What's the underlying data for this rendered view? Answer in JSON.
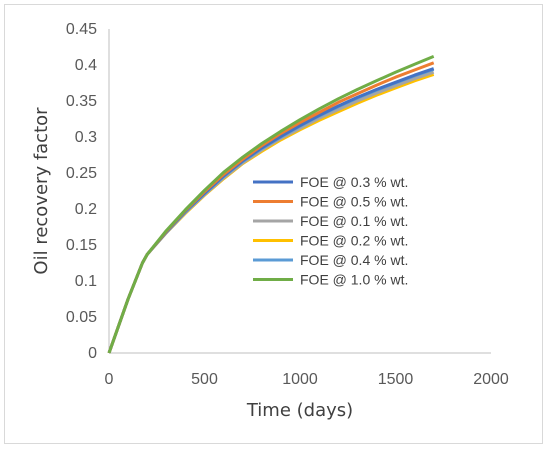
{
  "chart_data": {
    "type": "line",
    "title": "",
    "xlabel": "Time (days)",
    "ylabel": "Oil recovery factor",
    "xlim": [
      0,
      2000
    ],
    "ylim": [
      0,
      0.45
    ],
    "x_ticks": [
      "0",
      "500",
      "1000",
      "1500",
      "2000"
    ],
    "y_ticks": [
      "0",
      "0.05",
      "0.1",
      "0.15",
      "0.2",
      "0.25",
      "0.3",
      "0.35",
      "0.4",
      "0.45"
    ],
    "grid": false,
    "legend_position": "center-right",
    "x": [
      0,
      100,
      175,
      200,
      300,
      400,
      500,
      600,
      700,
      800,
      900,
      1000,
      1100,
      1200,
      1300,
      1400,
      1500,
      1600,
      1700
    ],
    "series": [
      {
        "name": "FOE @ 0.3 % wt.",
        "color": "#4472C4",
        "values": [
          0,
          0.075,
          0.125,
          0.137,
          0.168,
          0.197,
          0.222,
          0.246,
          0.267,
          0.285,
          0.301,
          0.316,
          0.33,
          0.343,
          0.355,
          0.366,
          0.376,
          0.386,
          0.395
        ]
      },
      {
        "name": "FOE @ 0.5 % wt.",
        "color": "#ED7D31",
        "values": [
          0,
          0.075,
          0.125,
          0.137,
          0.169,
          0.198,
          0.224,
          0.248,
          0.269,
          0.288,
          0.305,
          0.32,
          0.334,
          0.348,
          0.36,
          0.372,
          0.383,
          0.393,
          0.403
        ]
      },
      {
        "name": "FOE @ 0.1 % wt.",
        "color": "#A5A5A5",
        "values": [
          0,
          0.075,
          0.125,
          0.137,
          0.167,
          0.195,
          0.22,
          0.243,
          0.264,
          0.282,
          0.298,
          0.312,
          0.326,
          0.338,
          0.35,
          0.361,
          0.371,
          0.381,
          0.39
        ]
      },
      {
        "name": "FOE @ 0.2 % wt.",
        "color": "#FFC000",
        "values": [
          0,
          0.075,
          0.125,
          0.137,
          0.167,
          0.194,
          0.219,
          0.242,
          0.263,
          0.28,
          0.296,
          0.31,
          0.323,
          0.335,
          0.347,
          0.358,
          0.368,
          0.378,
          0.387
        ]
      },
      {
        "name": "FOE @ 0.4 % wt.",
        "color": "#5B9BD5",
        "values": [
          0,
          0.075,
          0.125,
          0.137,
          0.168,
          0.196,
          0.221,
          0.245,
          0.266,
          0.284,
          0.3,
          0.315,
          0.329,
          0.342,
          0.354,
          0.365,
          0.375,
          0.385,
          0.394
        ]
      },
      {
        "name": "FOE @ 1.0 % wt.",
        "color": "#70AD47",
        "values": [
          0,
          0.075,
          0.125,
          0.137,
          0.17,
          0.199,
          0.226,
          0.251,
          0.272,
          0.291,
          0.308,
          0.324,
          0.339,
          0.353,
          0.366,
          0.378,
          0.39,
          0.401,
          0.412
        ]
      }
    ]
  }
}
